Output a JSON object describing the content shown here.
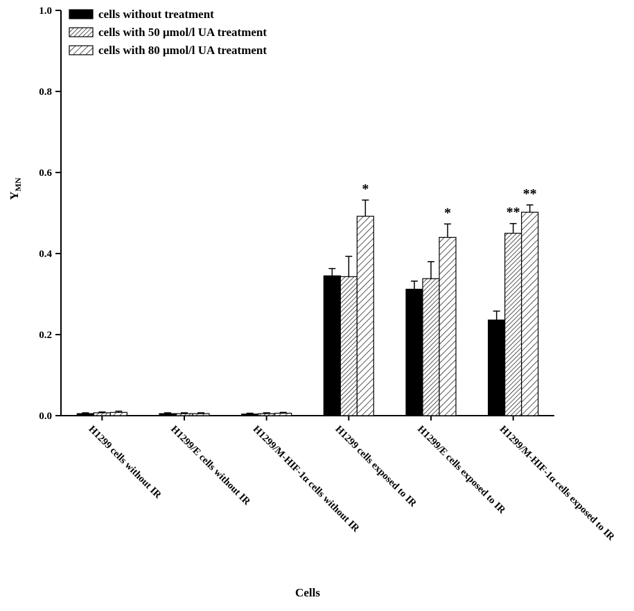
{
  "chart_data": {
    "type": "bar",
    "title": "",
    "xlabel": "Cells",
    "ylabel_main": "Y",
    "ylabel_sub": "MN",
    "ylim": [
      0,
      1.0
    ],
    "ytick_labels": [
      "0.0",
      "0.2",
      "0.4",
      "0.6",
      "0.8",
      "1.0"
    ],
    "grid": false,
    "legend_position": "top-left",
    "categories": [
      "H1299 cells without IR",
      "H1299/E cells without IR",
      "H1299/M-HIF-1α cells without IR",
      "H1299 cells exposed to IR",
      "H1299/E cells exposed to IR",
      "H1299/M-HIF-1α cells exposed to IR"
    ],
    "series": [
      {
        "name": "cells without treatment",
        "fill": "solid",
        "values": [
          0.005,
          0.005,
          0.004,
          0.345,
          0.312,
          0.236
        ],
        "errors": [
          0.002,
          0.002,
          0.002,
          0.018,
          0.02,
          0.022
        ],
        "annotations": [
          "",
          "",
          "",
          "",
          "",
          ""
        ]
      },
      {
        "name": "cells with 50 μmol/l UA treatment",
        "fill": "hatch-dense",
        "values": [
          0.007,
          0.005,
          0.005,
          0.343,
          0.338,
          0.45
        ],
        "errors": [
          0.002,
          0.002,
          0.002,
          0.05,
          0.042,
          0.024
        ],
        "annotations": [
          "",
          "",
          "",
          "",
          "",
          "**"
        ]
      },
      {
        "name": "cells with 80 μmol/l UA treatment",
        "fill": "hatch",
        "values": [
          0.008,
          0.005,
          0.006,
          0.492,
          0.44,
          0.502
        ],
        "errors": [
          0.003,
          0.002,
          0.002,
          0.04,
          0.033,
          0.018
        ],
        "annotations": [
          "",
          "",
          "",
          "*",
          "*",
          "**"
        ]
      }
    ],
    "colors": {
      "bar_fill": "#000000",
      "hatch_line": "#000000",
      "axis": "#000000",
      "background": "#ffffff"
    }
  }
}
